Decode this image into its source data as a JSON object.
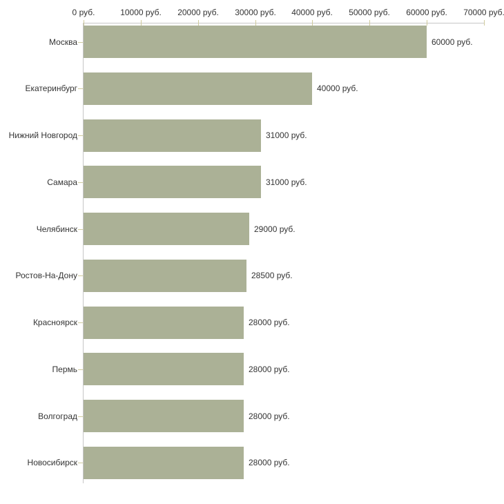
{
  "chart_data": {
    "type": "bar",
    "orientation": "horizontal",
    "title": "",
    "categories": [
      "Москва",
      "Екатеринбург",
      "Нижний Новгород",
      "Самара",
      "Челябинск",
      "Ростов-На-Дону",
      "Красноярск",
      "Пермь",
      "Волгоград",
      "Новосибирск"
    ],
    "values": [
      60000,
      40000,
      31000,
      31000,
      29000,
      28500,
      28000,
      28000,
      28000,
      28000
    ],
    "value_labels": [
      "60000 руб.",
      "40000 руб.",
      "31000 руб.",
      "31000 руб.",
      "29000 руб.",
      "28500 руб.",
      "28000 руб.",
      "28000 руб.",
      "28000 руб.",
      "28000 руб."
    ],
    "unit": "руб.",
    "xlabel": "",
    "ylabel": "",
    "x_axis": {
      "position": "top",
      "range": [
        0,
        70000
      ],
      "ticks": [
        0,
        10000,
        20000,
        30000,
        40000,
        50000,
        60000,
        70000
      ],
      "tick_labels": [
        "0 руб.",
        "10000 руб.",
        "20000 руб.",
        "30000 руб.",
        "40000 руб.",
        "50000 руб.",
        "60000 руб.",
        "70000 руб."
      ]
    },
    "grid": false,
    "legend": false,
    "colors": {
      "bar": "#ABB196",
      "axis_line": "#C6C6C6",
      "tick_mark": "#CFCA9C",
      "text": "#333333",
      "background": "#FFFFFF"
    }
  }
}
